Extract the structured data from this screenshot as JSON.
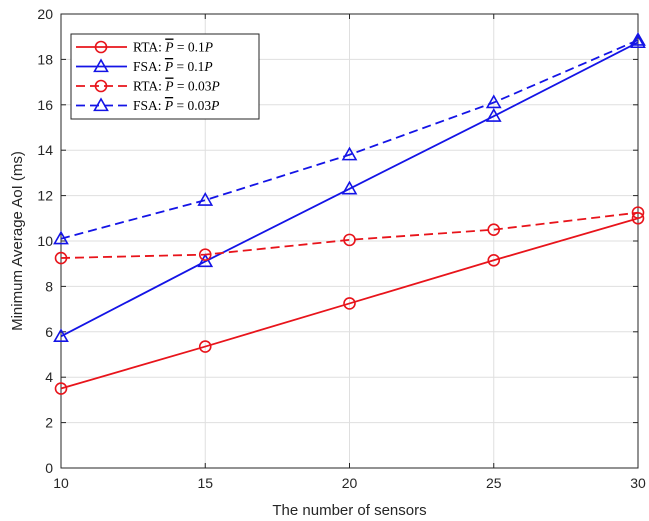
{
  "chart_data": {
    "type": "line",
    "xlabel": "The number of sensors",
    "ylabel": "Minimum Average AoI (ms)",
    "x": [
      10,
      15,
      20,
      25,
      30
    ],
    "xlim": [
      10,
      30
    ],
    "ylim": [
      0,
      20
    ],
    "xticks": [
      "10",
      "15",
      "20",
      "25",
      "30"
    ],
    "yticks": [
      "0",
      "2",
      "4",
      "6",
      "8",
      "10",
      "12",
      "14",
      "16",
      "18",
      "20"
    ],
    "grid": true,
    "legend_position": "top-left",
    "series": [
      {
        "name": "RTA: P̄ = 0.1P",
        "label_prefix": "RTA: ",
        "label_suffix": " = 0.1",
        "label_tail": "P",
        "values": [
          3.5,
          5.35,
          7.25,
          9.15,
          11.0
        ],
        "color": "#e8141b",
        "dash": "solid",
        "marker": "circle"
      },
      {
        "name": "FSA: P̄ = 0.1P",
        "label_prefix": "FSA: ",
        "label_suffix": " = 0.1",
        "label_tail": "P",
        "values": [
          5.8,
          9.1,
          12.3,
          15.5,
          18.75
        ],
        "color": "#1414e6",
        "dash": "solid",
        "marker": "triangle"
      },
      {
        "name": "RTA: P̄ = 0.03P",
        "label_prefix": "RTA: ",
        "label_suffix": " = 0.03",
        "label_tail": "P",
        "values": [
          9.25,
          9.4,
          10.05,
          10.5,
          11.25
        ],
        "color": "#e8141b",
        "dash": "dashed",
        "marker": "circle"
      },
      {
        "name": "FSA: P̄ = 0.03P",
        "label_prefix": "FSA: ",
        "label_suffix": " = 0.03",
        "label_tail": "P",
        "values": [
          10.1,
          11.8,
          13.8,
          16.1,
          18.85
        ],
        "color": "#1414e6",
        "dash": "dashed",
        "marker": "triangle"
      }
    ]
  }
}
